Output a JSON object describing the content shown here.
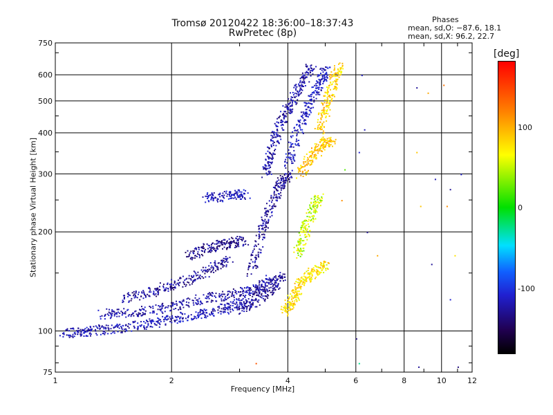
{
  "chart_data": {
    "type": "scatter",
    "title": "Tromsø 20120422 18:36:00–18:37:43",
    "subtitle": "RwPretec (8p)",
    "xlabel": "Frequency [MHz]",
    "ylabel": "Stationary phase Virtual Height [km]",
    "x_scale": "log",
    "y_scale": "log",
    "xlim": [
      1,
      12
    ],
    "ylim": [
      75,
      750
    ],
    "xticks": [
      1,
      2,
      4,
      6,
      8,
      10,
      12
    ],
    "yticks": [
      75,
      100,
      200,
      300,
      400,
      500,
      600,
      750
    ],
    "grid": true,
    "phases": {
      "heading": "Phases",
      "o_line": "mean, sd,O: −87.6, 18.1",
      "x_line": "mean, sd,X:  96.2, 22.7"
    },
    "colorbar": {
      "label": "[deg]",
      "ticks": [
        100,
        0,
        -100
      ],
      "colors": [
        "#ff0000",
        "#ff8000",
        "#ffff00",
        "#00e000",
        "#00e0ff",
        "#1060ff",
        "#2020d0",
        "#200050",
        "#000000"
      ]
    },
    "traces": [
      {
        "x": [
          1.05,
          1.2,
          1.4,
          1.7,
          2.0,
          2.4,
          2.8,
          3.1
        ],
        "y": [
          99,
          100,
          102,
          105,
          109,
          113,
          118,
          124
        ],
        "phase": -100
      },
      {
        "x": [
          1.3,
          1.6,
          2.0,
          2.4,
          2.9,
          3.3,
          3.6
        ],
        "y": [
          113,
          114,
          119,
          126,
          130,
          135,
          145
        ],
        "phase": -105
      },
      {
        "x": [
          1.5,
          1.8,
          2.1,
          2.5,
          2.8
        ],
        "y": [
          126,
          133,
          141,
          154,
          165
        ],
        "phase": -110
      },
      {
        "x": [
          2.2,
          2.5,
          2.8,
          3.1
        ],
        "y": [
          170,
          180,
          185,
          190
        ],
        "phase": -115
      },
      {
        "x": [
          2.4,
          2.8,
          3.1
        ],
        "y": [
          255,
          258,
          262
        ],
        "phase": -95
      },
      {
        "x": [
          3.0,
          3.3,
          3.6,
          3.9
        ],
        "y": [
          115,
          125,
          135,
          150
        ],
        "phase": -110
      },
      {
        "x": [
          3.2,
          3.4,
          3.6,
          3.8,
          4.0
        ],
        "y": [
          150,
          200,
          240,
          280,
          300
        ],
        "phase": -110
      },
      {
        "x": [
          3.5,
          3.6,
          3.8,
          4.0,
          4.3,
          4.6
        ],
        "y": [
          300,
          350,
          420,
          480,
          560,
          640
        ],
        "phase": -105
      },
      {
        "x": [
          4.0,
          4.2,
          4.5,
          4.8,
          5.0
        ],
        "y": [
          320,
          400,
          480,
          560,
          630
        ],
        "phase": -95
      },
      {
        "x": [
          3.9,
          4.1,
          4.3,
          4.6,
          5.0
        ],
        "y": [
          115,
          125,
          140,
          150,
          160
        ],
        "phase": 100
      },
      {
        "x": [
          4.3,
          4.6,
          4.9,
          5.2
        ],
        "y": [
          300,
          340,
          370,
          380
        ],
        "phase": 110
      },
      {
        "x": [
          4.8,
          5.0,
          5.2,
          5.4
        ],
        "y": [
          400,
          480,
          560,
          640
        ],
        "phase": 105
      },
      {
        "x": [
          4.2,
          4.4,
          4.6,
          4.8
        ],
        "y": [
          170,
          200,
          230,
          260
        ],
        "phase": 80
      }
    ],
    "scatter_noise": [
      {
        "x": 6.3,
        "y": 410,
        "phase": -100
      },
      {
        "x": 6.1,
        "y": 350,
        "phase": -90
      },
      {
        "x": 6.4,
        "y": 200,
        "phase": -110
      },
      {
        "x": 6.0,
        "y": 95,
        "phase": -120
      },
      {
        "x": 6.2,
        "y": 600,
        "phase": -95
      },
      {
        "x": 8.6,
        "y": 550,
        "phase": -110
      },
      {
        "x": 8.6,
        "y": 350,
        "phase": 110
      },
      {
        "x": 9.6,
        "y": 290,
        "phase": -100
      },
      {
        "x": 10.5,
        "y": 270,
        "phase": -110
      },
      {
        "x": 11.2,
        "y": 300,
        "phase": -90
      },
      {
        "x": 9.2,
        "y": 530,
        "phase": 120
      },
      {
        "x": 10.1,
        "y": 560,
        "phase": 140
      },
      {
        "x": 8.8,
        "y": 240,
        "phase": 110
      },
      {
        "x": 10.3,
        "y": 240,
        "phase": 130
      },
      {
        "x": 9.4,
        "y": 160,
        "phase": -110
      },
      {
        "x": 10.8,
        "y": 170,
        "phase": 100
      },
      {
        "x": 10.5,
        "y": 125,
        "phase": -90
      },
      {
        "x": 8.7,
        "y": 78,
        "phase": -110
      },
      {
        "x": 6.1,
        "y": 80,
        "phase": 20
      },
      {
        "x": 11.0,
        "y": 78,
        "phase": -120
      },
      {
        "x": 6.8,
        "y": 170,
        "phase": 120
      },
      {
        "x": 5.6,
        "y": 310,
        "phase": 60
      },
      {
        "x": 5.5,
        "y": 250,
        "phase": 130
      },
      {
        "x": 3.3,
        "y": 80,
        "phase": 150
      }
    ]
  }
}
